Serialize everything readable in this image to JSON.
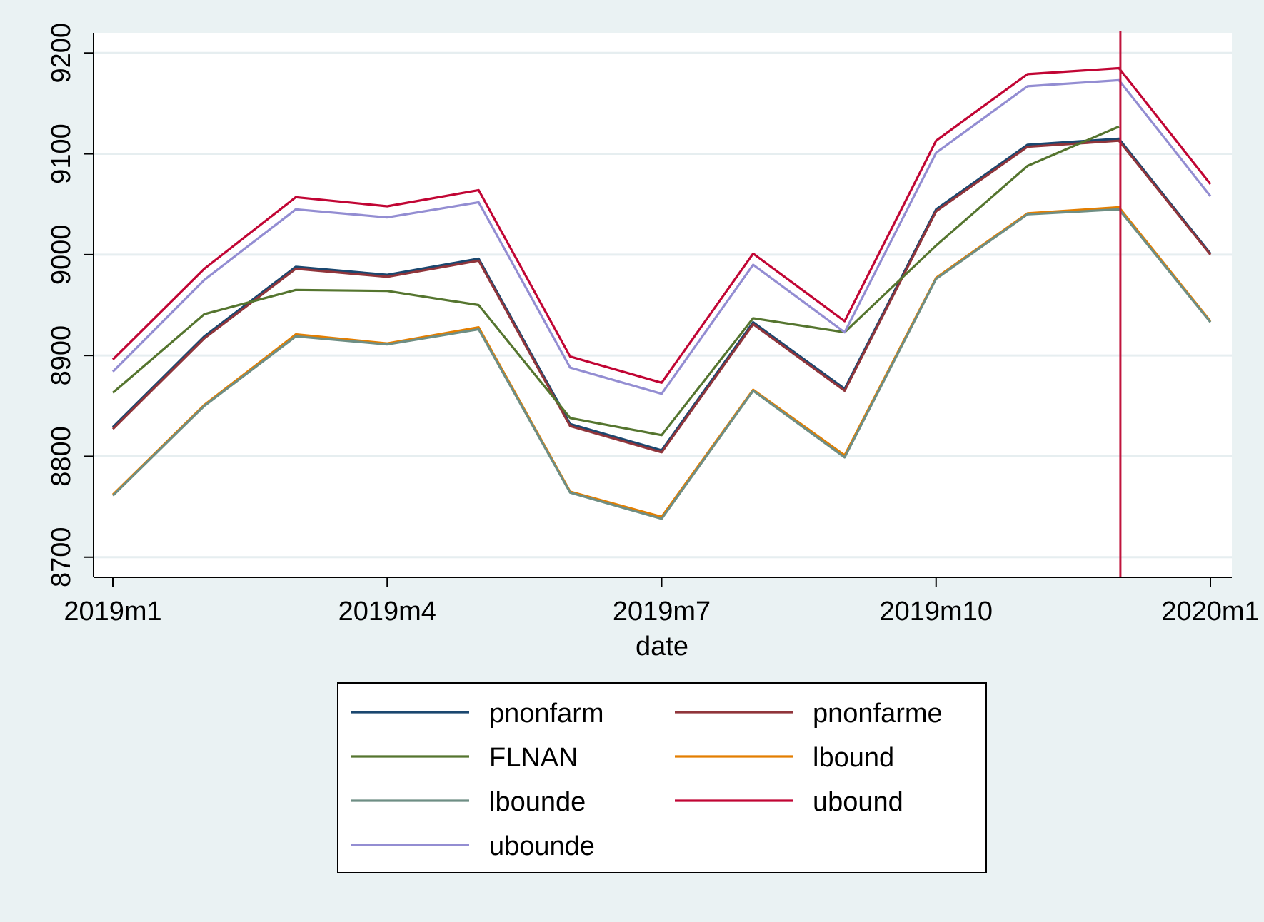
{
  "chart_data": {
    "type": "line",
    "title": "",
    "xlabel": "date",
    "ylabel": "",
    "x": [
      "2019m1",
      "2019m2",
      "2019m3",
      "2019m4",
      "2019m5",
      "2019m6",
      "2019m7",
      "2019m8",
      "2019m9",
      "2019m10",
      "2019m11",
      "2019m12",
      "2020m1"
    ],
    "x_ticks": [
      "2019m1",
      "2019m4",
      "2019m7",
      "2019m10",
      "2020m1"
    ],
    "y_ticks": [
      8700,
      8800,
      8900,
      9000,
      9100,
      9200
    ],
    "ylim": [
      8680,
      9220
    ],
    "grid": true,
    "legend_position": "bottom",
    "legend_columns": 2,
    "reference_line": {
      "x": "2019m12",
      "color": "#c0143c"
    },
    "series": [
      {
        "name": "pnonfarm",
        "color": "#1a476f",
        "values": [
          8829,
          8919,
          8988,
          8980,
          8996,
          8832,
          8806,
          8933,
          8867,
          9045,
          9109,
          9115,
          9001
        ]
      },
      {
        "name": "pnonfarme",
        "color": "#90353b",
        "values": [
          8827,
          8917,
          8986,
          8978,
          8994,
          8830,
          8804,
          8931,
          8865,
          9043,
          9107,
          9113,
          9000
        ]
      },
      {
        "name": "FLNAN",
        "color": "#55752f",
        "values": [
          8863,
          8941,
          8965,
          8964,
          8950,
          8838,
          8821,
          8937,
          8923,
          9009,
          9088,
          9127,
          null
        ]
      },
      {
        "name": "lbound",
        "color": "#e37e00",
        "values": [
          8762,
          8851,
          8921,
          8912,
          8928,
          8765,
          8740,
          8866,
          8801,
          8977,
          9041,
          9047,
          8934
        ]
      },
      {
        "name": "lbounde",
        "color": "#6e8e84",
        "values": [
          8761,
          8850,
          8919,
          8911,
          8926,
          8764,
          8738,
          8865,
          8799,
          8976,
          9040,
          9045,
          8933
        ]
      },
      {
        "name": "ubound",
        "color": "#c10534",
        "values": [
          8896,
          8986,
          9057,
          9048,
          9064,
          8899,
          8873,
          9001,
          8934,
          9113,
          9179,
          9185,
          9070
        ]
      },
      {
        "name": "ubounde",
        "color": "#938dd2",
        "values": [
          8884,
          8975,
          9045,
          9037,
          9052,
          8888,
          8862,
          8990,
          8923,
          9101,
          9167,
          9173,
          9058
        ]
      }
    ]
  }
}
